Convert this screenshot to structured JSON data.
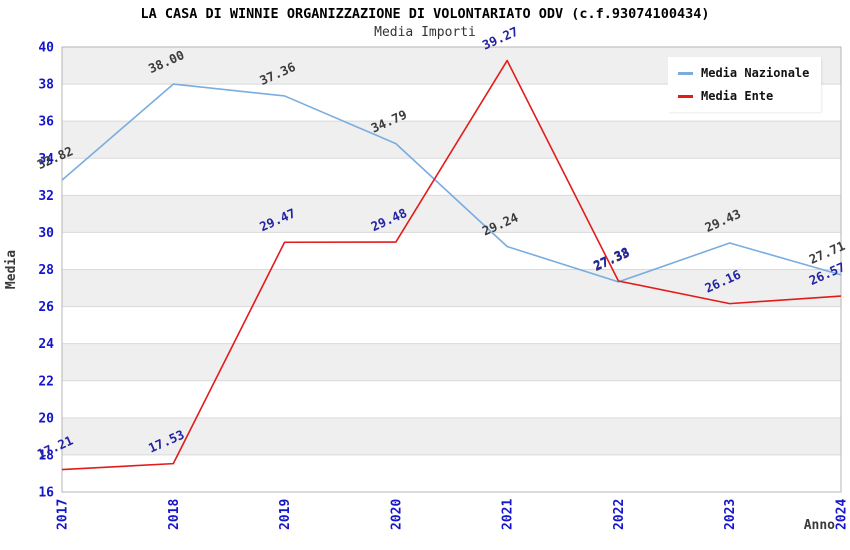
{
  "chart_data": {
    "type": "line",
    "title": "LA CASA DI WINNIE ORGANIZZAZIONE DI VOLONTARIATO ODV (c.f.93074100434)",
    "subtitle": "Media Importi",
    "xlabel": "Anno",
    "ylabel": "Media",
    "x_categories": [
      "2017",
      "2018",
      "2019",
      "2020",
      "2021",
      "2022",
      "2023",
      "2024"
    ],
    "series": [
      {
        "name": "Media Nazionale",
        "color": "#79ade0",
        "label_color": "#3c3c3c",
        "values": [
          32.82,
          38.0,
          37.36,
          34.79,
          29.24,
          27.33,
          29.43,
          27.71
        ],
        "labels": [
          "32.82",
          "38.00",
          "37.36",
          "34.79",
          "29.24",
          "27.33",
          "29.43",
          "27.71"
        ]
      },
      {
        "name": "Media Ente",
        "color": "#e31b1b",
        "label_color": "#2323a3",
        "values": [
          17.21,
          17.53,
          29.47,
          29.48,
          39.27,
          27.38,
          26.16,
          26.57
        ],
        "labels": [
          "17.21",
          "17.53",
          "29.47",
          "29.48",
          "39.27",
          "27.38",
          "26.16",
          "26.57"
        ]
      }
    ],
    "ylim": [
      16,
      40
    ],
    "ytick_step": 2,
    "yticks": [
      16,
      18,
      20,
      22,
      24,
      26,
      28,
      30,
      32,
      34,
      36,
      38,
      40
    ],
    "grid": true,
    "legend_position": "top-right",
    "styles": {
      "band_dark": "#efefef",
      "band_light": "#ffffff",
      "gridline": "#dadada",
      "plot_border": "#b5b5b5",
      "axis_tick_color": "#1515cc",
      "axis_title_color": "#3a3a3a"
    }
  }
}
